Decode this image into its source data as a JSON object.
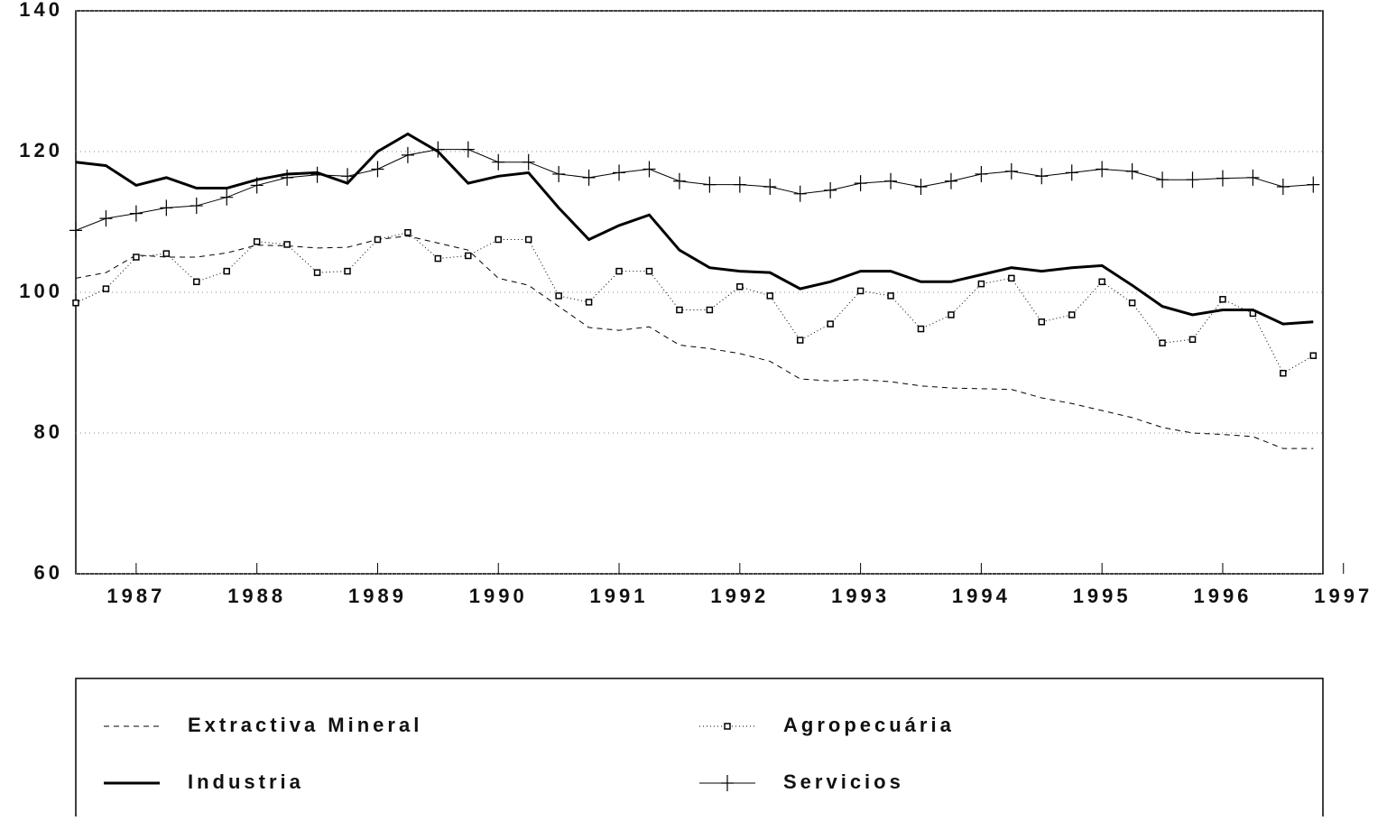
{
  "chart_data": {
    "type": "line",
    "x": [
      1987,
      1987.25,
      1987.5,
      1987.75,
      1988,
      1988.25,
      1988.5,
      1988.75,
      1989,
      1989.25,
      1989.5,
      1989.75,
      1990,
      1990.25,
      1990.5,
      1990.75,
      1991,
      1991.25,
      1991.5,
      1991.75,
      1992,
      1992.25,
      1992.5,
      1992.75,
      1993,
      1993.25,
      1993.5,
      1993.75,
      1994,
      1994.25,
      1994.5,
      1994.75,
      1995,
      1995.25,
      1995.5,
      1995.75,
      1996,
      1996.25,
      1996.5,
      1996.75,
      1997,
      1997.25
    ],
    "xlim": [
      1987,
      1997.33
    ],
    "xticks": [
      {
        "value": 1987.5,
        "label": "1987"
      },
      {
        "value": 1988.5,
        "label": "1988"
      },
      {
        "value": 1989.5,
        "label": "1989"
      },
      {
        "value": 1990.5,
        "label": "1990"
      },
      {
        "value": 1991.5,
        "label": "1991"
      },
      {
        "value": 1992.5,
        "label": "1992"
      },
      {
        "value": 1993.5,
        "label": "1993"
      },
      {
        "value": 1994.5,
        "label": "1994"
      },
      {
        "value": 1995.5,
        "label": "1995"
      },
      {
        "value": 1996.5,
        "label": "1996"
      },
      {
        "value": 1997.5,
        "label": "1997"
      }
    ],
    "ylim": [
      60,
      140
    ],
    "yticks": [
      60,
      80,
      100,
      120,
      140
    ],
    "grid": true,
    "legend": "bottom",
    "series": [
      {
        "name": "Extractiva Mineral",
        "color": "#000000",
        "style": "dashed",
        "values": [
          102,
          102.8,
          105.3,
          105,
          105,
          105.6,
          106.7,
          106.6,
          106.3,
          106.4,
          107.5,
          108,
          107,
          106,
          102,
          101,
          98,
          95,
          94.6,
          95.1,
          92.5,
          92,
          91.3,
          90.2,
          87.7,
          87.4,
          87.6,
          87.3,
          86.7,
          86.4,
          86.3,
          86.2,
          85,
          84.2,
          83.2,
          82.2,
          80.8,
          80,
          79.8,
          79.5,
          77.8,
          77.8
        ]
      },
      {
        "name": "Agropecuária",
        "color": "#000000",
        "style": "square",
        "values": [
          98.5,
          100.5,
          105,
          105.5,
          101.5,
          103,
          107.2,
          106.8,
          102.8,
          103,
          107.5,
          108.5,
          104.8,
          105.2,
          107.5,
          107.5,
          99.5,
          98.6,
          103,
          103,
          97.5,
          97.5,
          100.8,
          99.5,
          93.2,
          95.5,
          100.2,
          99.5,
          94.8,
          96.8,
          101.2,
          102,
          95.8,
          96.8,
          101.5,
          98.5,
          92.8,
          93.3,
          99,
          97,
          88.5,
          91
        ]
      },
      {
        "name": "Industria",
        "color": "#000000",
        "style": "solid",
        "values": [
          118.5,
          118,
          115.2,
          116.3,
          114.8,
          114.8,
          116,
          116.8,
          117,
          115.5,
          120,
          122.5,
          120,
          115.5,
          116.5,
          117,
          112,
          107.5,
          109.5,
          111,
          106,
          103.5,
          103,
          102.8,
          100.5,
          101.5,
          103,
          103,
          101.5,
          101.5,
          102.5,
          103.5,
          103,
          103.5,
          103.8,
          101,
          98,
          96.8,
          97.5,
          97.5,
          95.5,
          95.8
        ]
      },
      {
        "name": "Servicios",
        "color": "#000000",
        "style": "plus",
        "values": [
          108.8,
          110.5,
          111.2,
          112,
          112.3,
          113.5,
          115.2,
          116.3,
          116.7,
          116.5,
          117.5,
          119.5,
          120.3,
          120.3,
          118.5,
          118.5,
          116.8,
          116.3,
          117,
          117.5,
          115.8,
          115.3,
          115.3,
          115,
          114,
          114.5,
          115.5,
          115.8,
          115,
          115.8,
          116.8,
          117.2,
          116.5,
          117,
          117.5,
          117.2,
          116,
          116,
          116.2,
          116.3,
          115,
          115.3
        ]
      }
    ]
  }
}
